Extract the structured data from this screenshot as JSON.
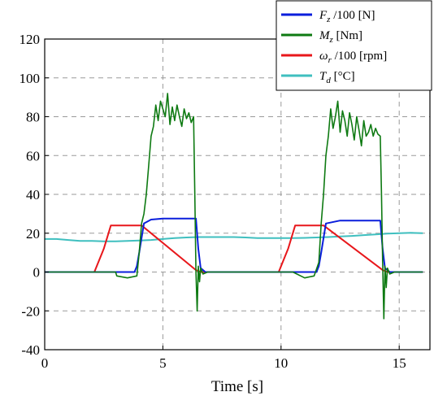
{
  "chart_data": {
    "type": "line",
    "xlabel": "Time [s]",
    "xlim": [
      0,
      16.3
    ],
    "ylim": [
      -40,
      120
    ],
    "xticks": [
      0,
      5,
      10,
      15
    ],
    "yticks": [
      -40,
      -20,
      0,
      20,
      40,
      60,
      80,
      100,
      120
    ],
    "grid": true,
    "legend_placement": "top-right",
    "series": [
      {
        "name_parts": [
          "F",
          "z",
          " /100 [N]"
        ],
        "color": "#0a1edc",
        "x": [
          0,
          3.8,
          3.9,
          4.0,
          4.2,
          4.5,
          5.0,
          5.5,
          6.0,
          6.4,
          6.5,
          6.6,
          6.8,
          8,
          10,
          11.5,
          11.6,
          11.7,
          11.9,
          12.5,
          13.5,
          14.2,
          14.3,
          14.4,
          14.6,
          16
        ],
        "y": [
          0,
          0,
          3,
          10,
          25,
          27,
          27.5,
          27.5,
          27.5,
          27.5,
          12,
          2,
          0,
          0,
          0,
          0,
          3,
          10,
          25,
          26.5,
          26.5,
          26.5,
          12,
          2,
          0,
          0
        ]
      },
      {
        "name_parts": [
          "M",
          "z",
          "  [Nm]"
        ],
        "color": "#0e7a12",
        "x": [
          0,
          3.0,
          3.05,
          3.5,
          3.9,
          4.0,
          4.1,
          4.2,
          4.3,
          4.4,
          4.5,
          4.6,
          4.7,
          4.8,
          4.9,
          5.0,
          5.1,
          5.2,
          5.3,
          5.4,
          5.5,
          5.6,
          5.7,
          5.8,
          5.9,
          6.0,
          6.1,
          6.2,
          6.3,
          6.35,
          6.4,
          6.45,
          6.5,
          6.55,
          6.6,
          6.7,
          6.9,
          7.5,
          10.5,
          11.0,
          11.4,
          11.6,
          11.7,
          11.8,
          11.9,
          12.0,
          12.1,
          12.2,
          12.3,
          12.4,
          12.5,
          12.6,
          12.7,
          12.8,
          12.9,
          13.0,
          13.1,
          13.2,
          13.3,
          13.4,
          13.5,
          13.6,
          13.7,
          13.8,
          13.9,
          14.0,
          14.1,
          14.2,
          14.25,
          14.3,
          14.35,
          14.4,
          14.45,
          14.5,
          14.6,
          14.8,
          15.5,
          16
        ],
        "y": [
          0,
          0,
          -2,
          -3,
          -2,
          10,
          25,
          30,
          40,
          55,
          70,
          75,
          86,
          78,
          88,
          84,
          80,
          92,
          76,
          85,
          78,
          86,
          80,
          75,
          84,
          79,
          82,
          77,
          80,
          40,
          0,
          -20,
          3,
          -5,
          2,
          -1,
          0,
          0,
          0,
          -3,
          -2,
          5,
          25,
          40,
          60,
          70,
          84,
          74,
          80,
          88,
          72,
          83,
          78,
          70,
          82,
          76,
          68,
          80,
          73,
          65,
          78,
          70,
          72,
          76,
          70,
          74,
          71,
          70,
          40,
          5,
          -24,
          3,
          -8,
          2,
          -1,
          0,
          0,
          0
        ]
      },
      {
        "name_parts": [
          "ω",
          "r",
          " /100 [rpm]"
        ],
        "color": "#e8171b",
        "x": [
          0,
          2.1,
          2.5,
          2.8,
          3.5,
          4.1,
          6.4,
          6.6,
          8,
          9.9,
          10.3,
          10.6,
          11.2,
          11.8,
          14.3,
          14.5,
          16
        ],
        "y": [
          0,
          0,
          12,
          24,
          24,
          24,
          1,
          0,
          0,
          0,
          12,
          24,
          24,
          24,
          1,
          0,
          0
        ]
      },
      {
        "name_parts": [
          "T",
          "d",
          "  [°C]"
        ],
        "color": "#3fbfbf",
        "x": [
          0,
          0.5,
          1,
          1.5,
          2,
          2.5,
          3,
          3.5,
          4,
          4.5,
          5,
          5.5,
          6,
          6.5,
          7,
          7.5,
          8,
          8.5,
          9,
          9.5,
          10,
          10.5,
          11,
          11.5,
          12,
          12.5,
          13,
          13.5,
          14,
          14.5,
          15,
          15.5,
          16
        ],
        "y": [
          17,
          17,
          16.5,
          16,
          16,
          15.8,
          15.8,
          16,
          16.2,
          16.5,
          17,
          17.5,
          17.8,
          18,
          18,
          18,
          18,
          17.8,
          17.5,
          17.5,
          17.5,
          17.5,
          17.6,
          17.8,
          18,
          18.3,
          18.6,
          19,
          19.4,
          19.8,
          20,
          20.2,
          20
        ]
      }
    ]
  }
}
